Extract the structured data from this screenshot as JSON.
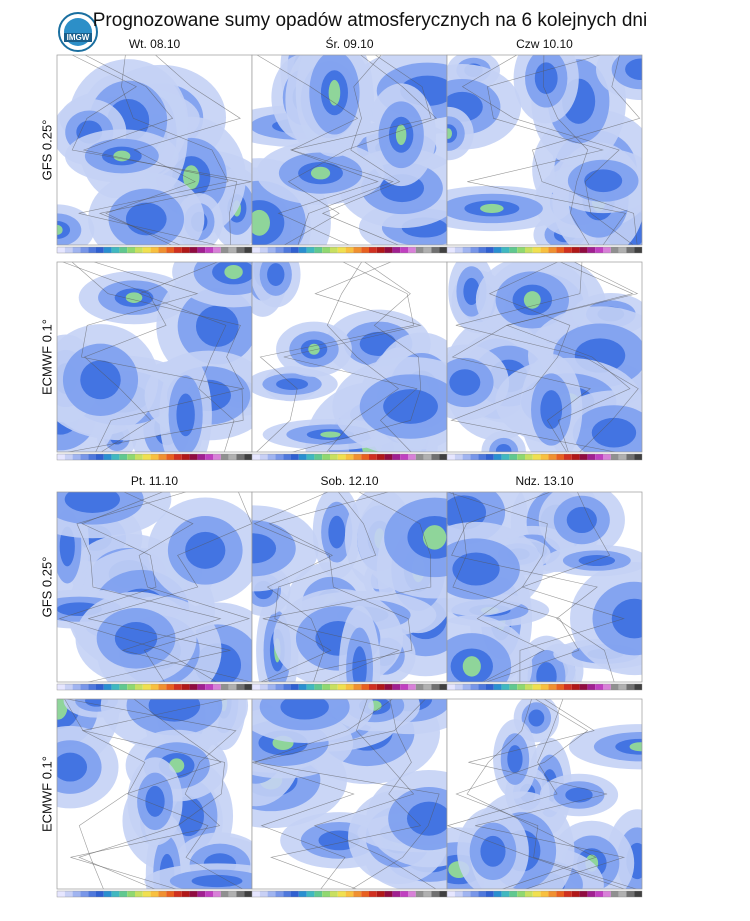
{
  "header": {
    "title": "Prognozowane sumy opadów atmosferycznych na 6 kolejnych dni"
  },
  "days": [
    "Wt. 08.10",
    "Śr. 09.10",
    "Czw 10.10",
    "Pt. 11.10",
    "Sob. 12.10",
    "Ndz. 13.10"
  ],
  "models": [
    "GFS 0.25°",
    "ECMWF 0.1°"
  ]
}
